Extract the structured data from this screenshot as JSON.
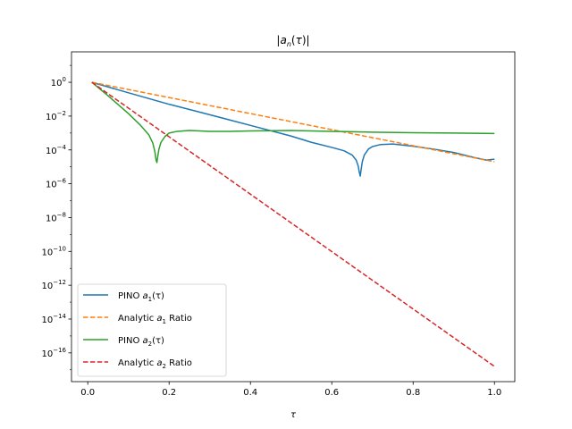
{
  "chart_data": {
    "type": "line",
    "title": "|a_n(τ)|",
    "xlabel": "τ",
    "ylabel": "",
    "xlim": [
      -0.04,
      1.05
    ],
    "ylim_log10": [
      -17.7,
      1.8
    ],
    "yscale": "log",
    "grid": false,
    "legend_position": "lower-left",
    "xticks": [
      {
        "value": 0.0,
        "label": "0.0"
      },
      {
        "value": 0.2,
        "label": "0.2"
      },
      {
        "value": 0.4,
        "label": "0.4"
      },
      {
        "value": 0.6,
        "label": "0.6"
      },
      {
        "value": 0.8,
        "label": "0.8"
      },
      {
        "value": 1.0,
        "label": "1.0"
      }
    ],
    "yticks": [
      {
        "exp": 0,
        "base": "10",
        "sup": "0"
      },
      {
        "exp": -2,
        "base": "10",
        "sup": "−2"
      },
      {
        "exp": -4,
        "base": "10",
        "sup": "−4"
      },
      {
        "exp": -6,
        "base": "10",
        "sup": "−6"
      },
      {
        "exp": -8,
        "base": "10",
        "sup": "−8"
      },
      {
        "exp": -10,
        "base": "10",
        "sup": "−10"
      },
      {
        "exp": -12,
        "base": "10",
        "sup": "−12"
      },
      {
        "exp": -14,
        "base": "10",
        "sup": "−14"
      },
      {
        "exp": -16,
        "base": "10",
        "sup": "−16"
      }
    ],
    "series": [
      {
        "name": "PINO a₁(τ)",
        "color": "#1f77b4",
        "style": "solid",
        "x": [
          0.01,
          0.1,
          0.2,
          0.3,
          0.4,
          0.5,
          0.55,
          0.6,
          0.63,
          0.65,
          0.66,
          0.665,
          0.6675,
          0.67,
          0.6725,
          0.675,
          0.68,
          0.69,
          0.7,
          0.72,
          0.75,
          0.8,
          0.85,
          0.9,
          0.95,
          0.98,
          1.0
        ],
        "log10y": [
          0.0,
          -0.62,
          -1.3,
          -1.92,
          -2.55,
          -3.18,
          -3.55,
          -3.85,
          -4.05,
          -4.3,
          -4.6,
          -4.95,
          -5.3,
          -5.55,
          -5.1,
          -4.7,
          -4.3,
          -3.95,
          -3.8,
          -3.68,
          -3.65,
          -3.78,
          -3.95,
          -4.15,
          -4.45,
          -4.6,
          -4.55
        ]
      },
      {
        "name": "Analytic a₁ Ratio",
        "color": "#ff7f0e",
        "style": "dashed",
        "x": [
          0.01,
          1.0
        ],
        "log10y": [
          0.0,
          -4.7
        ]
      },
      {
        "name": "PINO a₂(τ)",
        "color": "#2ca02c",
        "style": "solid",
        "x": [
          0.01,
          0.05,
          0.1,
          0.13,
          0.15,
          0.16,
          0.165,
          0.168,
          0.17,
          0.172,
          0.175,
          0.18,
          0.19,
          0.2,
          0.22,
          0.25,
          0.3,
          0.35,
          0.4,
          0.5,
          0.6,
          0.7,
          0.8,
          0.9,
          1.0
        ],
        "log10y": [
          0.0,
          -0.8,
          -1.85,
          -2.55,
          -3.1,
          -3.6,
          -4.1,
          -4.6,
          -4.75,
          -4.4,
          -3.95,
          -3.55,
          -3.2,
          -3.0,
          -2.9,
          -2.85,
          -2.9,
          -2.9,
          -2.88,
          -2.85,
          -2.9,
          -2.95,
          -2.98,
          -3.0,
          -3.03
        ]
      },
      {
        "name": "Analytic a₂ Ratio",
        "color": "#d62728",
        "style": "dashed",
        "x": [
          0.01,
          1.0
        ],
        "log10y": [
          0.0,
          -16.8
        ]
      }
    ]
  },
  "legend": [
    {
      "prefix": "PINO ",
      "sym": "a",
      "sub": "1",
      "suffix": "(τ)",
      "color": "#1f77b4",
      "style": "solid"
    },
    {
      "prefix": "Analytic ",
      "sym": "a",
      "sub": "1",
      "suffix": " Ratio",
      "color": "#ff7f0e",
      "style": "dashed"
    },
    {
      "prefix": "PINO ",
      "sym": "a",
      "sub": "2",
      "suffix": "(τ)",
      "color": "#2ca02c",
      "style": "solid"
    },
    {
      "prefix": "Analytic ",
      "sym": "a",
      "sub": "2",
      "suffix": " Ratio",
      "color": "#d62728",
      "style": "dashed"
    }
  ]
}
